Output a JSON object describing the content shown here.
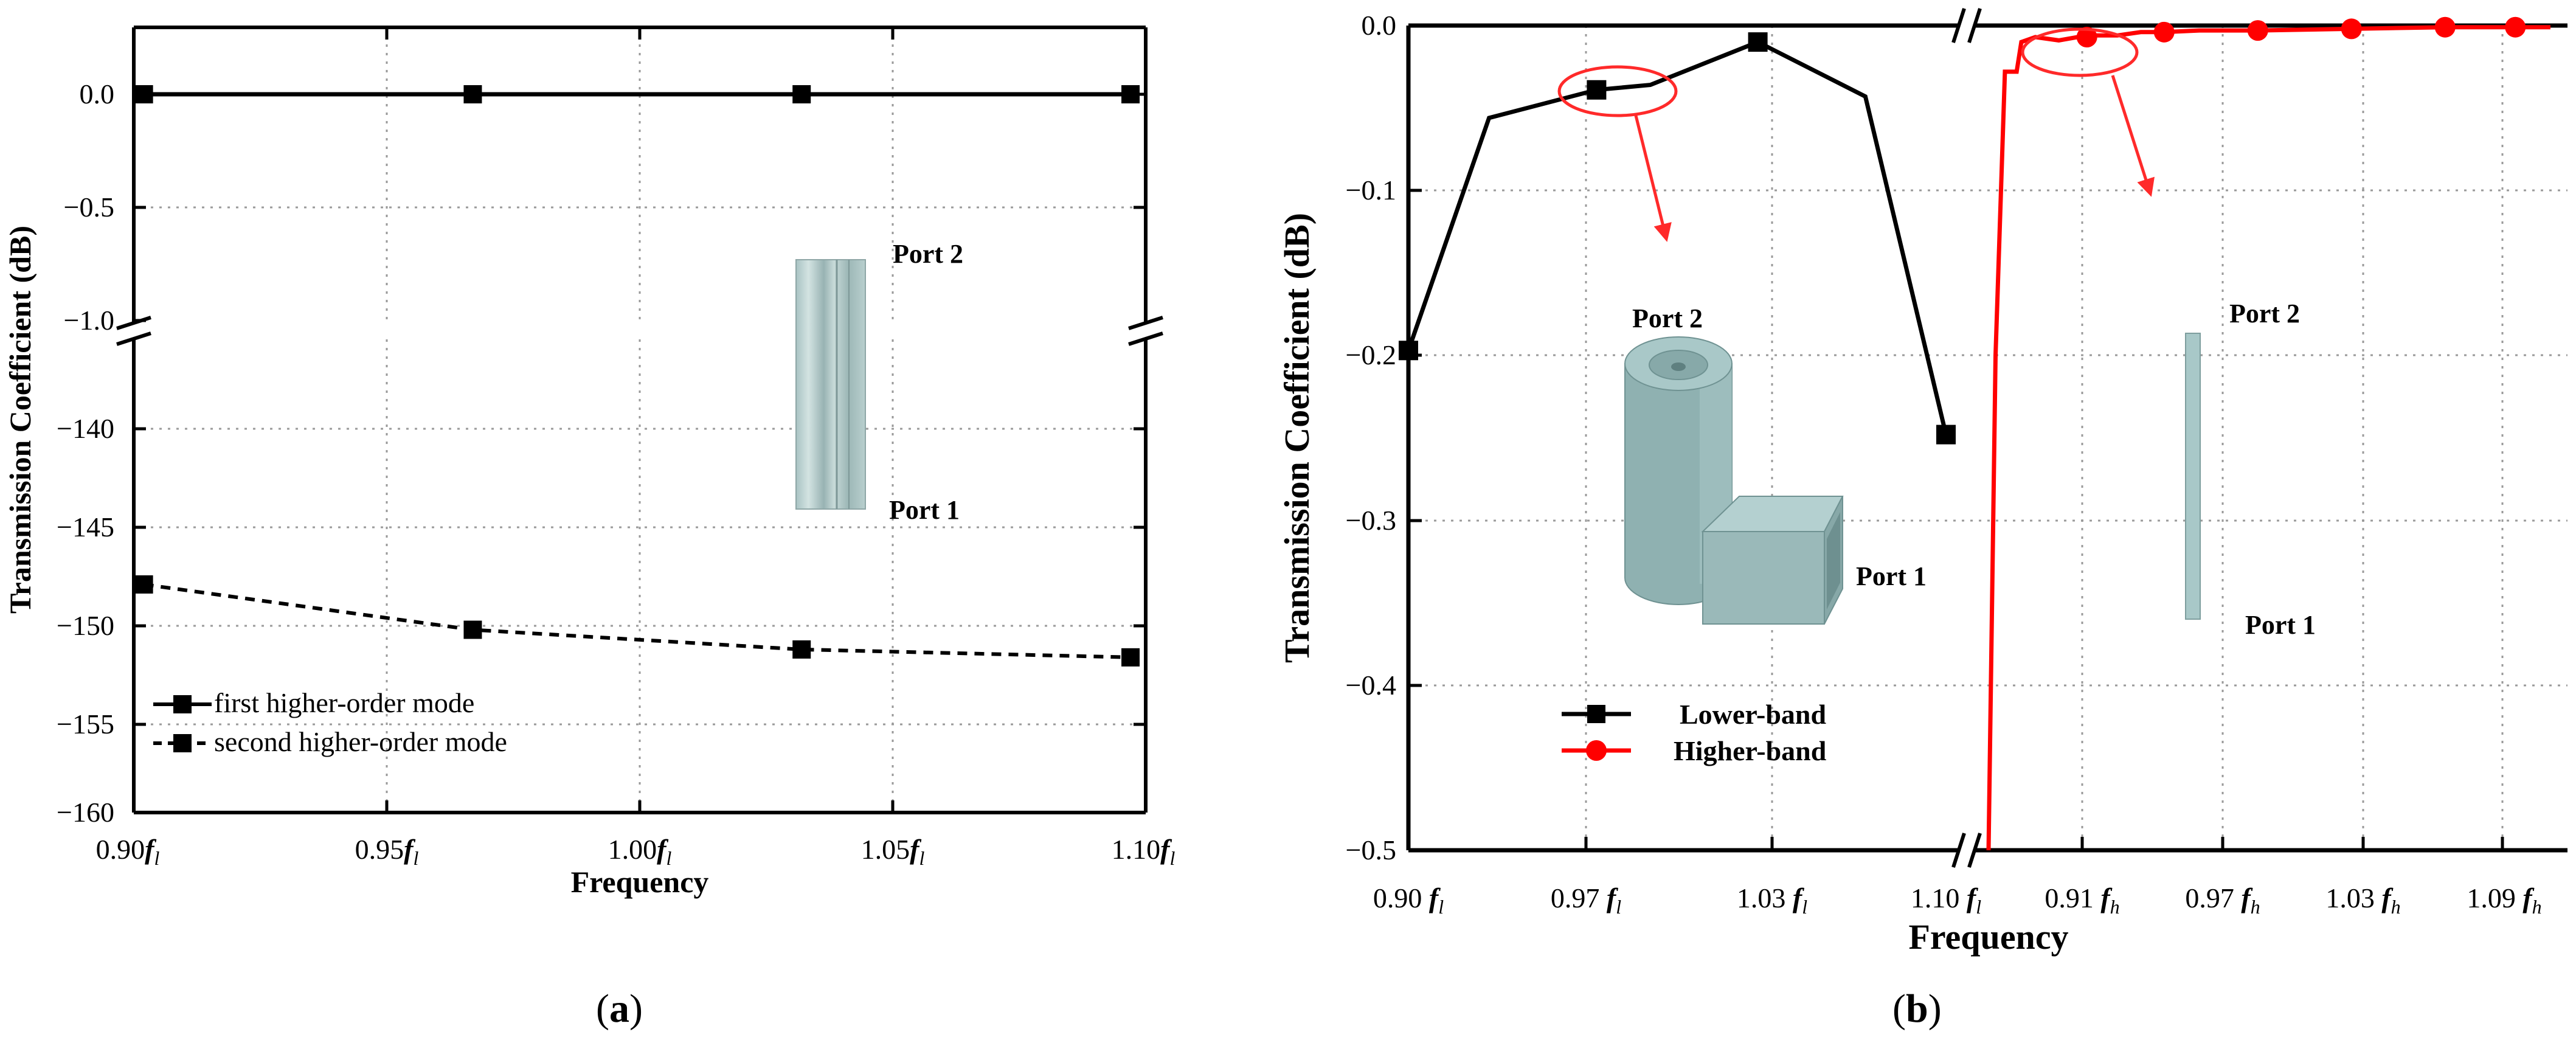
{
  "chart_data": [
    {
      "type": "line",
      "panel": "a",
      "caption": "(a)",
      "xlabel": "Frequency",
      "ylabel": "Transmission Coefficient (dB)",
      "x_tick_labels": [
        {
          "num": "0.90",
          "sub": "l"
        },
        {
          "num": "0.95",
          "sub": "l"
        },
        {
          "num": "1.00",
          "sub": "l"
        },
        {
          "num": "1.05",
          "sub": "l"
        },
        {
          "num": "1.10",
          "sub": "l"
        }
      ],
      "x_ticks": [
        0.9,
        0.95,
        1.0,
        1.05,
        1.1
      ],
      "xlim": [
        0.9,
        1.1
      ],
      "y_broken": true,
      "y_upper": {
        "ylim": [
          -1.0,
          0.25
        ],
        "ticks": [
          0.0,
          -0.5,
          -1.0
        ],
        "tick_labels": [
          "0.0",
          "−0.5",
          "−1.0"
        ]
      },
      "y_lower": {
        "ylim": [
          -160,
          -136
        ],
        "ticks": [
          -140,
          -145,
          -150,
          -155,
          -160
        ],
        "tick_labels": [
          "−140",
          "−145",
          "−150",
          "−155",
          "−160"
        ]
      },
      "x": [
        0.902,
        0.967,
        1.032,
        1.097
      ],
      "series": [
        {
          "name": "first higher-order mode",
          "style": "solid",
          "marker": "square",
          "values": [
            0.0,
            0.0,
            0.0,
            0.0
          ]
        },
        {
          "name": "second higher-order mode",
          "style": "dashed",
          "marker": "square",
          "values": [
            -147.9,
            -150.2,
            -151.2,
            -151.6
          ]
        }
      ],
      "annotations": {
        "port_top": "Port 2",
        "port_bottom": "Port 1"
      }
    },
    {
      "type": "line",
      "panel": "b",
      "caption": "(b)",
      "xlabel": "Frequency",
      "ylabel": "Transmission Coefficient (dB)",
      "ylim": [
        -0.5,
        0.0
      ],
      "y_ticks": [
        0.0,
        -0.1,
        -0.2,
        -0.3,
        -0.4,
        -0.5
      ],
      "y_tick_labels": [
        "0.0",
        "−0.1",
        "−0.2",
        "−0.3",
        "−0.4",
        "−0.5"
      ],
      "x_broken": true,
      "x_lower": {
        "xlim": [
          0.9,
          1.1
        ],
        "ticks": [
          0.9,
          0.97,
          1.03,
          1.1
        ],
        "tick_labels": [
          {
            "num": "0.90",
            "sub": "l"
          },
          {
            "num": "0.97",
            "sub": "l"
          },
          {
            "num": "1.03",
            "sub": "l"
          },
          {
            "num": "1.10",
            "sub": "l"
          }
        ]
      },
      "x_higher": {
        "xlim": [
          0.87,
          1.11
        ],
        "ticks": [
          0.91,
          0.97,
          1.03,
          1.09
        ],
        "tick_labels": [
          {
            "num": "0.91",
            "sub": "h"
          },
          {
            "num": "0.97",
            "sub": "h"
          },
          {
            "num": "1.03",
            "sub": "h"
          },
          {
            "num": "1.09",
            "sub": "h"
          }
        ]
      },
      "series": [
        {
          "name": "Lower-band",
          "color": "#000000",
          "marker": "square",
          "segment": "lower",
          "marker_points": [
            [
              0.9,
              -0.197
            ],
            [
              0.97,
              -0.039
            ],
            [
              1.03,
              -0.01
            ],
            [
              1.1,
              -0.248
            ]
          ],
          "line_points": [
            [
              0.9,
              -0.197
            ],
            [
              0.93,
              -0.056
            ],
            [
              0.97,
              -0.039
            ],
            [
              0.99,
              -0.036
            ],
            [
              1.03,
              -0.01
            ],
            [
              1.07,
              -0.043
            ],
            [
              1.1,
              -0.248
            ]
          ]
        },
        {
          "name": "Higher-band",
          "color": "#ff0000",
          "marker": "circle",
          "segment": "higher",
          "marker_points": [
            [
              0.912,
              -0.007
            ],
            [
              0.945,
              -0.004
            ],
            [
              0.985,
              -0.003
            ],
            [
              1.025,
              -0.002
            ],
            [
              1.065,
              -0.001
            ],
            [
              1.095,
              -0.001
            ]
          ],
          "line_points": [
            [
              0.87,
              -0.5
            ],
            [
              0.873,
              -0.2
            ],
            [
              0.877,
              -0.028
            ],
            [
              0.882,
              -0.028
            ],
            [
              0.884,
              -0.01
            ],
            [
              0.89,
              -0.007
            ],
            [
              0.9,
              -0.009
            ],
            [
              0.912,
              -0.006
            ],
            [
              0.925,
              -0.006
            ],
            [
              0.935,
              -0.004
            ],
            [
              0.945,
              -0.004
            ],
            [
              0.96,
              -0.003
            ],
            [
              0.985,
              -0.003
            ],
            [
              1.025,
              -0.002
            ],
            [
              1.065,
              -0.001
            ],
            [
              1.095,
              -0.001
            ],
            [
              1.11,
              -0.001
            ]
          ]
        }
      ],
      "annotations": {
        "port_left_top": "Port 2",
        "port_left_bottom": "Port 1",
        "port_right_top": "Port 2",
        "port_right_bottom": "Port 1"
      }
    }
  ]
}
